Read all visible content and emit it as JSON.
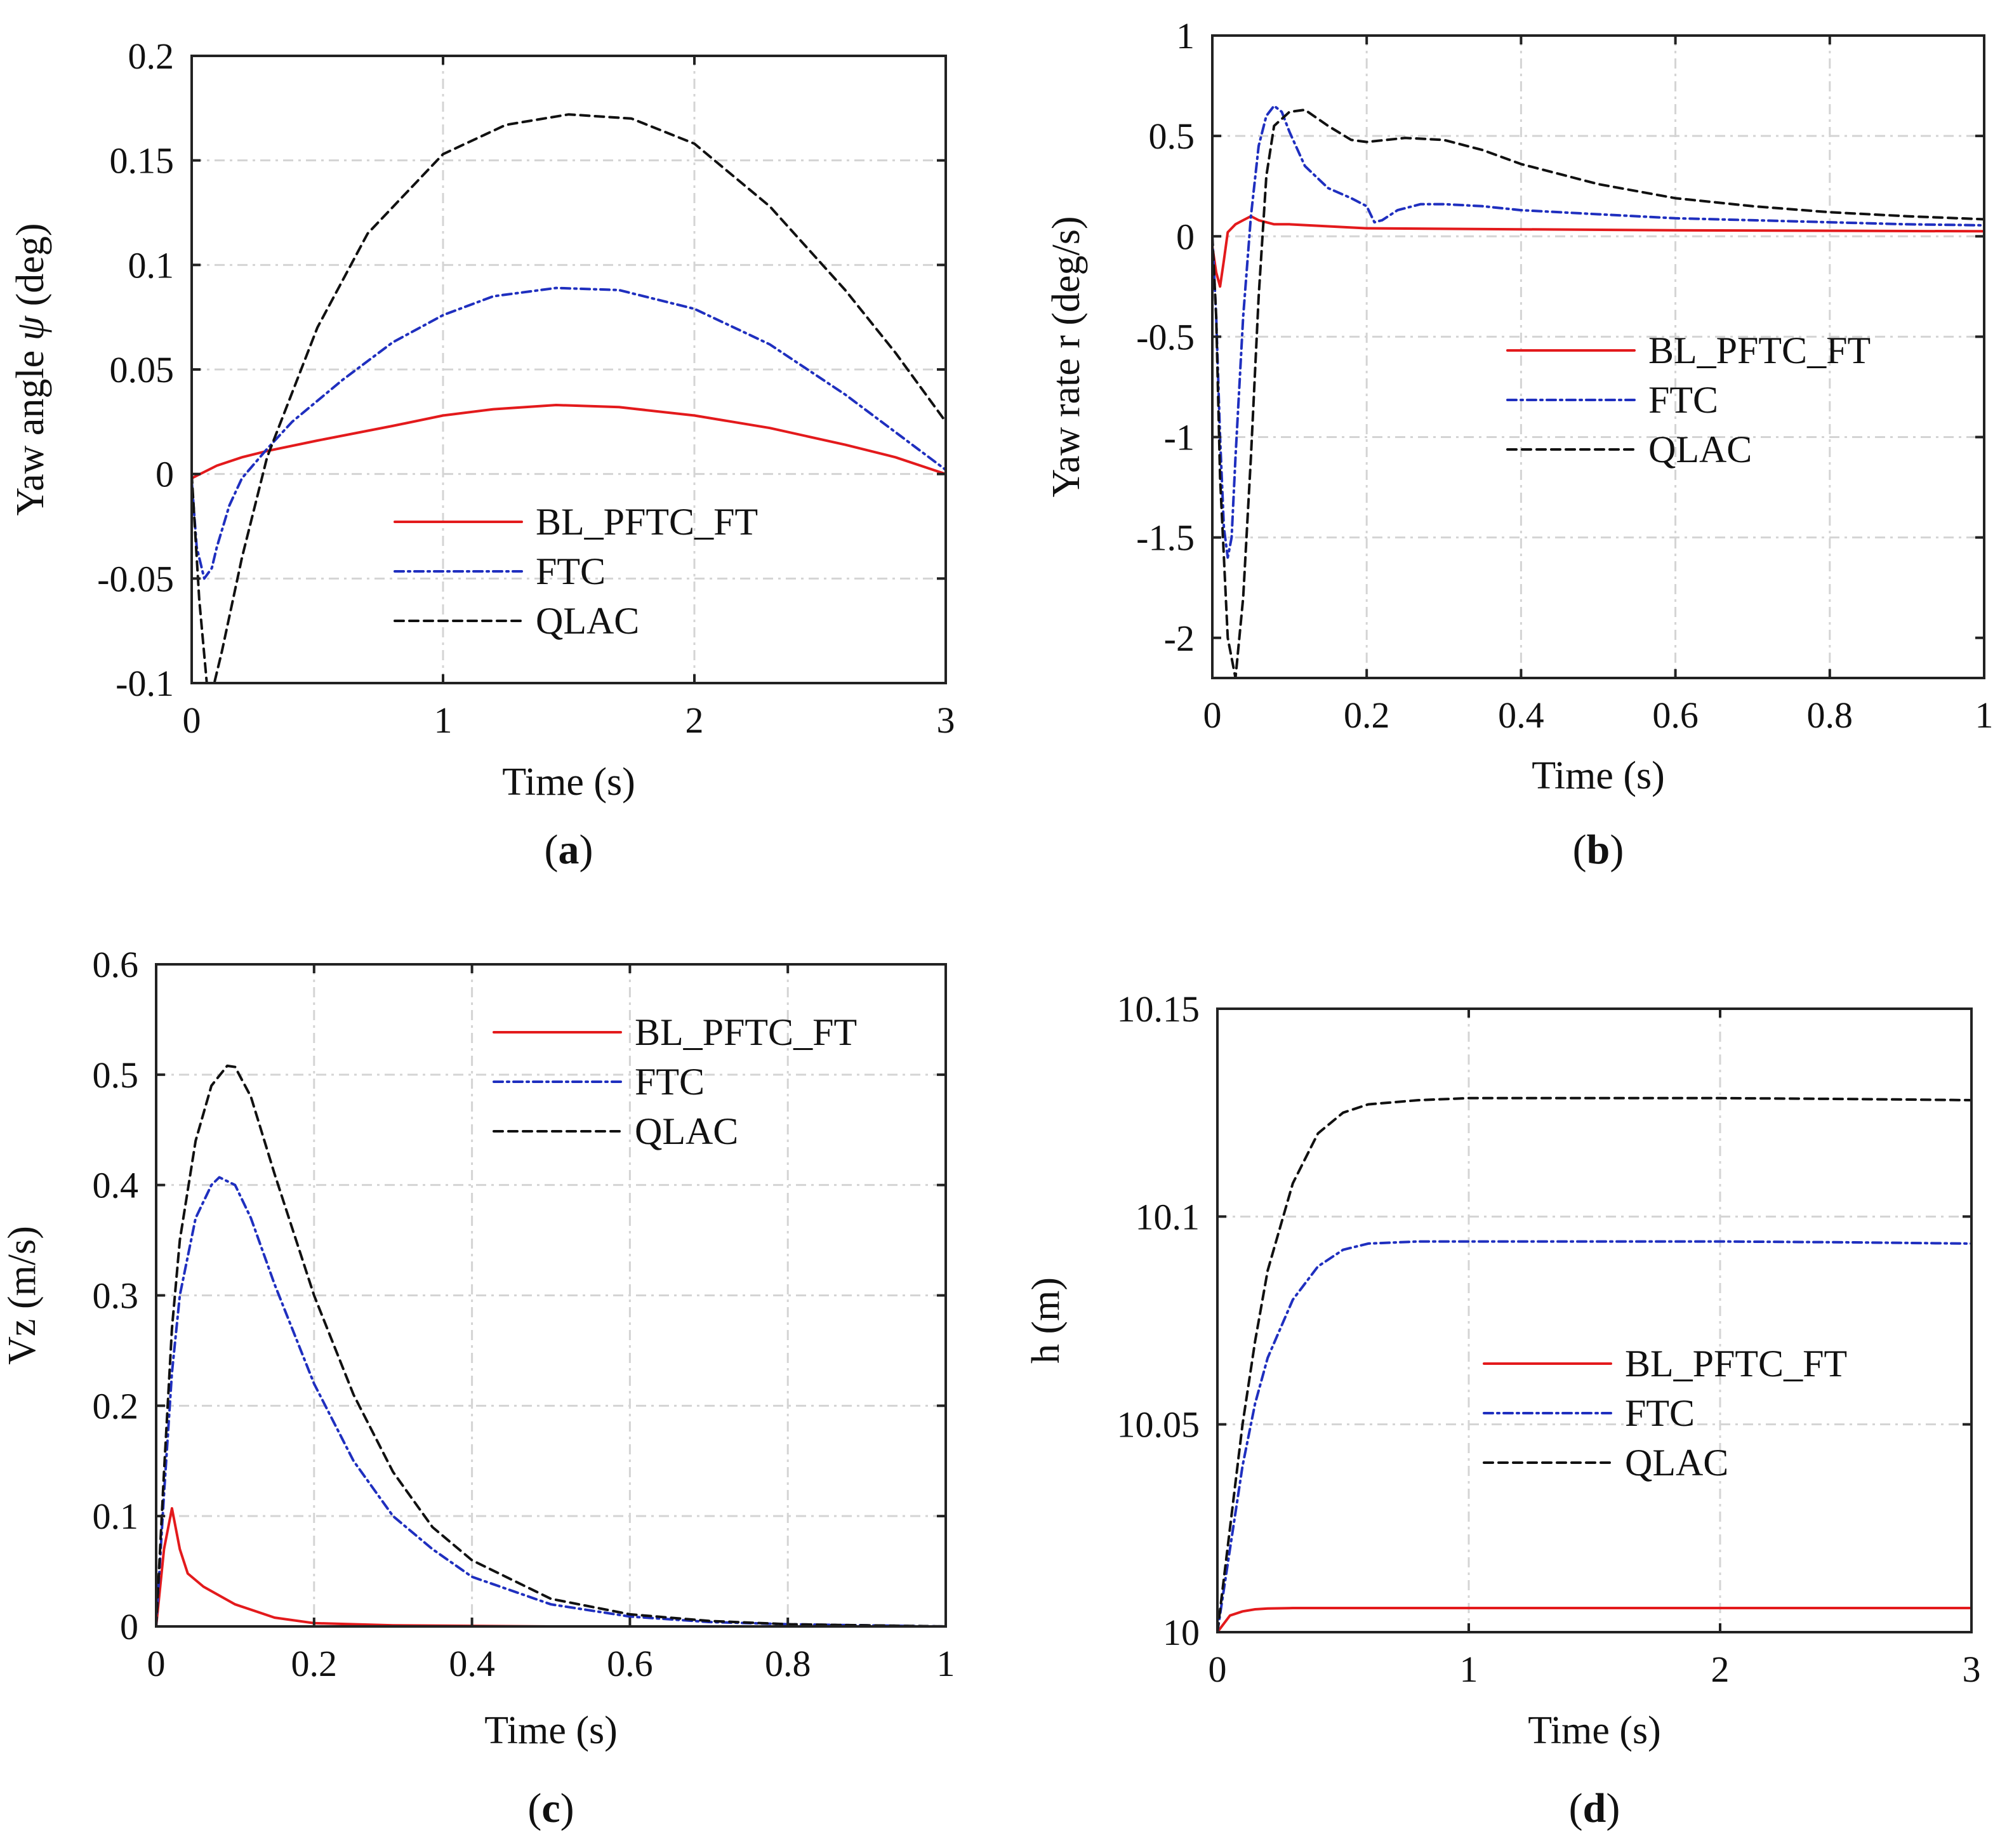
{
  "colors": {
    "BL_PFTC_FT": "#e31a1c",
    "FTC": "#1f2fbf",
    "QLAC": "#111111"
  },
  "chart_data": [
    {
      "id": "a",
      "type": "line",
      "caption": "a",
      "xlabel": "Time (s)",
      "ylabel_prefix": "Yaw angle ",
      "ylabel_symbol": "ψ",
      "ylabel_suffix": " (deg)",
      "xlim": [
        0,
        3
      ],
      "ylim": [
        -0.1,
        0.2
      ],
      "xticks": [
        0,
        1,
        2,
        3
      ],
      "xtick_labels": [
        "0",
        "1",
        "2",
        "3"
      ],
      "yticks": [
        -0.1,
        -0.05,
        0,
        0.05,
        0.1,
        0.15,
        0.2
      ],
      "ytick_labels": [
        "-0.1",
        "-0.05",
        "0",
        "0.05",
        "0.1",
        "0.15",
        "0.2"
      ],
      "legend_position": "lower-center",
      "series": [
        {
          "name": "BL_PFTC_FT",
          "style": "solid",
          "x": [
            0,
            0.1,
            0.2,
            0.3,
            0.5,
            0.8,
            1.0,
            1.2,
            1.45,
            1.7,
            2.0,
            2.3,
            2.6,
            2.8,
            3.0
          ],
          "y": [
            -0.002,
            0.004,
            0.008,
            0.011,
            0.016,
            0.023,
            0.028,
            0.031,
            0.033,
            0.032,
            0.028,
            0.022,
            0.014,
            0.008,
            0.0
          ]
        },
        {
          "name": "FTC",
          "style": "dashdot",
          "x": [
            0,
            0.02,
            0.05,
            0.08,
            0.1,
            0.15,
            0.2,
            0.3,
            0.4,
            0.6,
            0.8,
            1.0,
            1.2,
            1.45,
            1.7,
            2.0,
            2.3,
            2.6,
            2.8,
            3.0
          ],
          "y": [
            -0.003,
            -0.035,
            -0.05,
            -0.045,
            -0.035,
            -0.015,
            -0.002,
            0.012,
            0.025,
            0.045,
            0.063,
            0.076,
            0.085,
            0.089,
            0.088,
            0.079,
            0.062,
            0.038,
            0.02,
            0.002
          ]
        },
        {
          "name": "QLAC",
          "style": "dashed",
          "x": [
            0,
            0.03,
            0.06,
            0.09,
            0.12,
            0.2,
            0.3,
            0.5,
            0.7,
            1.0,
            1.25,
            1.5,
            1.75,
            2.0,
            2.3,
            2.6,
            2.8,
            3.0
          ],
          "y": [
            0.0,
            -0.06,
            -0.1,
            -0.1,
            -0.085,
            -0.04,
            0.008,
            0.07,
            0.115,
            0.153,
            0.167,
            0.172,
            0.17,
            0.158,
            0.128,
            0.088,
            0.058,
            0.025
          ]
        }
      ]
    },
    {
      "id": "b",
      "type": "line",
      "caption": "b",
      "xlabel": "Time (s)",
      "ylabel": "Yaw rate r (deg/s)",
      "xlim": [
        0,
        1
      ],
      "ylim": [
        -2.2,
        1
      ],
      "xticks": [
        0,
        0.2,
        0.4,
        0.6,
        0.8,
        1
      ],
      "xtick_labels": [
        "0",
        "0.2",
        "0.4",
        "0.6",
        "0.8",
        "1"
      ],
      "yticks": [
        -2,
        -1.5,
        -1,
        -0.5,
        0,
        0.5,
        1
      ],
      "ytick_labels": [
        "-2",
        "-1.5",
        "-1",
        "-0.5",
        "0",
        "0.5",
        "1"
      ],
      "legend_position": "center-right",
      "series": [
        {
          "name": "BL_PFTC_FT",
          "style": "solid",
          "x": [
            0,
            0.005,
            0.01,
            0.015,
            0.02,
            0.03,
            0.04,
            0.05,
            0.06,
            0.08,
            0.1,
            0.2,
            0.4,
            0.6,
            1.0
          ],
          "y": [
            -0.05,
            -0.18,
            -0.25,
            -0.12,
            0.02,
            0.06,
            0.08,
            0.1,
            0.08,
            0.06,
            0.06,
            0.04,
            0.035,
            0.03,
            0.025
          ]
        },
        {
          "name": "FTC",
          "style": "dashdot",
          "x": [
            0,
            0.005,
            0.01,
            0.015,
            0.02,
            0.025,
            0.03,
            0.04,
            0.05,
            0.06,
            0.07,
            0.08,
            0.09,
            0.1,
            0.12,
            0.15,
            0.18,
            0.2,
            0.21,
            0.22,
            0.24,
            0.27,
            0.3,
            0.35,
            0.4,
            0.5,
            0.6,
            0.7,
            0.8,
            0.9,
            1.0
          ],
          "y": [
            0,
            -0.4,
            -1.0,
            -1.45,
            -1.6,
            -1.5,
            -1.1,
            -0.4,
            0.1,
            0.45,
            0.6,
            0.65,
            0.62,
            0.52,
            0.35,
            0.24,
            0.19,
            0.15,
            0.07,
            0.08,
            0.13,
            0.16,
            0.16,
            0.15,
            0.13,
            0.11,
            0.09,
            0.08,
            0.07,
            0.06,
            0.055
          ]
        },
        {
          "name": "QLAC",
          "style": "dashed",
          "x": [
            0,
            0.005,
            0.01,
            0.02,
            0.03,
            0.04,
            0.05,
            0.06,
            0.07,
            0.08,
            0.1,
            0.12,
            0.15,
            0.18,
            0.2,
            0.25,
            0.3,
            0.35,
            0.4,
            0.5,
            0.6,
            0.7,
            0.8,
            0.9,
            1.0
          ],
          "y": [
            0,
            -0.4,
            -1.2,
            -2.0,
            -2.2,
            -1.8,
            -1.1,
            -0.3,
            0.3,
            0.55,
            0.62,
            0.63,
            0.55,
            0.48,
            0.47,
            0.49,
            0.48,
            0.43,
            0.36,
            0.26,
            0.19,
            0.15,
            0.12,
            0.1,
            0.085
          ]
        }
      ]
    },
    {
      "id": "c",
      "type": "line",
      "caption": "c",
      "xlabel": "Time (s)",
      "ylabel": "Vz (m/s)",
      "xlim": [
        0,
        1
      ],
      "ylim": [
        0,
        0.6
      ],
      "xticks": [
        0,
        0.2,
        0.4,
        0.6,
        0.8,
        1
      ],
      "xtick_labels": [
        "0",
        "0.2",
        "0.4",
        "0.6",
        "0.8",
        "1"
      ],
      "yticks": [
        0,
        0.1,
        0.2,
        0.3,
        0.4,
        0.5,
        0.6
      ],
      "ytick_labels": [
        "0",
        "0.1",
        "0.2",
        "0.3",
        "0.4",
        "0.5",
        "0.6"
      ],
      "legend_position": "top-right",
      "series": [
        {
          "name": "BL_PFTC_FT",
          "style": "solid",
          "x": [
            0,
            0.01,
            0.02,
            0.03,
            0.04,
            0.06,
            0.1,
            0.15,
            0.2,
            0.3,
            0.5,
            1.0
          ],
          "y": [
            0,
            0.07,
            0.107,
            0.07,
            0.048,
            0.036,
            0.02,
            0.008,
            0.003,
            0.001,
            0.0,
            0.0
          ]
        },
        {
          "name": "FTC",
          "style": "dashdot",
          "x": [
            0,
            0.01,
            0.02,
            0.03,
            0.05,
            0.07,
            0.08,
            0.1,
            0.12,
            0.15,
            0.2,
            0.25,
            0.3,
            0.35,
            0.4,
            0.5,
            0.6,
            0.7,
            0.8,
            0.9,
            1.0
          ],
          "y": [
            0,
            0.12,
            0.23,
            0.3,
            0.37,
            0.4,
            0.407,
            0.4,
            0.37,
            0.31,
            0.22,
            0.15,
            0.1,
            0.07,
            0.045,
            0.02,
            0.009,
            0.004,
            0.002,
            0.001,
            0.0
          ]
        },
        {
          "name": "QLAC",
          "style": "dashed",
          "x": [
            0,
            0.01,
            0.02,
            0.03,
            0.05,
            0.07,
            0.09,
            0.1,
            0.12,
            0.15,
            0.2,
            0.25,
            0.3,
            0.35,
            0.4,
            0.5,
            0.6,
            0.7,
            0.8,
            0.9,
            1.0
          ],
          "y": [
            0,
            0.14,
            0.27,
            0.35,
            0.44,
            0.49,
            0.508,
            0.507,
            0.48,
            0.41,
            0.3,
            0.21,
            0.14,
            0.09,
            0.06,
            0.025,
            0.011,
            0.005,
            0.002,
            0.001,
            0.0
          ]
        }
      ]
    },
    {
      "id": "d",
      "type": "line",
      "caption": "d",
      "xlabel": "Time (s)",
      "ylabel": "h (m)",
      "xlim": [
        0,
        3
      ],
      "ylim": [
        10,
        10.15
      ],
      "xticks": [
        0,
        1,
        2,
        3
      ],
      "xtick_labels": [
        "0",
        "1",
        "2",
        "3"
      ],
      "yticks": [
        10,
        10.05,
        10.1,
        10.15
      ],
      "ytick_labels": [
        "10",
        "10.05",
        "10.1",
        "10.15"
      ],
      "legend_position": "center-right",
      "series": [
        {
          "name": "BL_PFTC_FT",
          "style": "solid",
          "x": [
            0,
            0.05,
            0.1,
            0.15,
            0.2,
            0.3,
            0.5,
            1.0,
            2.0,
            3.0
          ],
          "y": [
            10.0,
            10.004,
            10.005,
            10.0055,
            10.0057,
            10.0058,
            10.0058,
            10.0058,
            10.0058,
            10.0058
          ]
        },
        {
          "name": "FTC",
          "style": "dashdot",
          "x": [
            0,
            0.05,
            0.1,
            0.15,
            0.2,
            0.3,
            0.4,
            0.5,
            0.6,
            0.8,
            1.0,
            1.5,
            2.0,
            2.5,
            3.0
          ],
          "y": [
            10.0,
            10.02,
            10.04,
            10.055,
            10.066,
            10.08,
            10.088,
            10.092,
            10.0935,
            10.094,
            10.094,
            10.094,
            10.094,
            10.0938,
            10.0935
          ]
        },
        {
          "name": "QLAC",
          "style": "dashed",
          "x": [
            0,
            0.05,
            0.1,
            0.15,
            0.2,
            0.3,
            0.4,
            0.5,
            0.6,
            0.8,
            1.0,
            1.5,
            2.0,
            2.5,
            3.0
          ],
          "y": [
            10.0,
            10.025,
            10.05,
            10.07,
            10.087,
            10.108,
            10.12,
            10.125,
            10.127,
            10.128,
            10.1285,
            10.1285,
            10.1285,
            10.1283,
            10.128
          ]
        }
      ]
    }
  ]
}
